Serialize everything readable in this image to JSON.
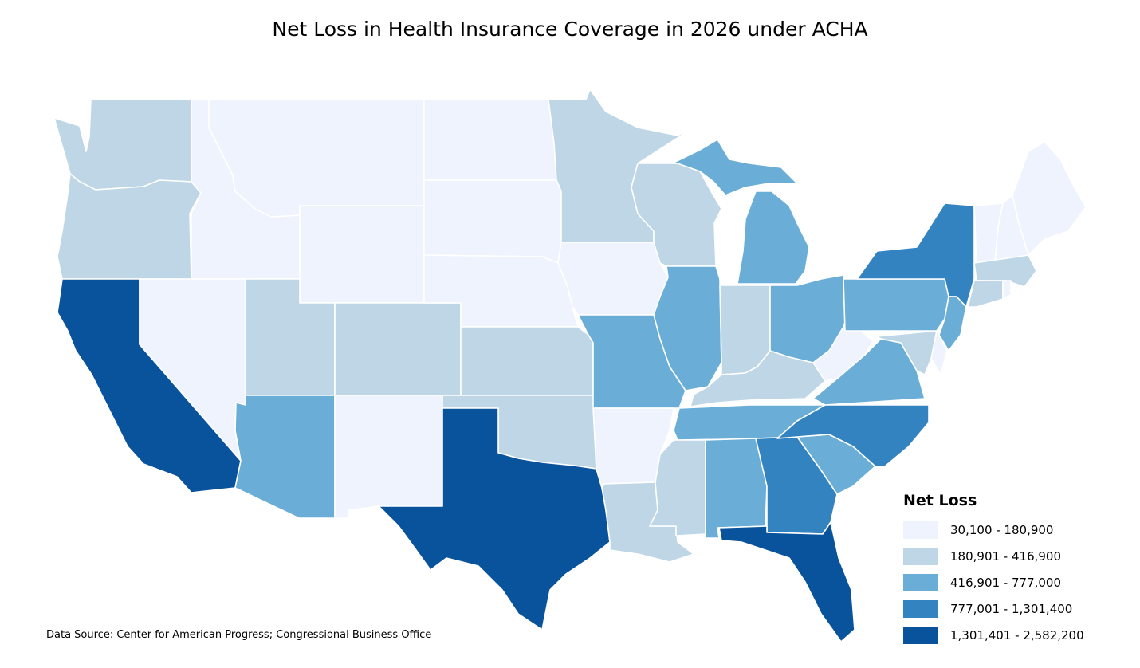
{
  "title": "Net Loss in Health Insurance Coverage in 2026 under ACHA",
  "source": "Data Source: Center for American Progress; Congressional Business Office",
  "legend": {
    "title": "Net Loss",
    "classes": [
      {
        "label": "30,100 - 180,900",
        "color": "#eef3fd"
      },
      {
        "label": "180,901 - 416,900",
        "color": "#bed6e6"
      },
      {
        "label": "416,901 - 777,000",
        "color": "#6aaed8"
      },
      {
        "label": "777,001 - 1,301,400",
        "color": "#3383c0"
      },
      {
        "label": "1,301,401 - 2,582,200",
        "color": "#09529c"
      }
    ]
  },
  "states": [
    {
      "id": "WA",
      "class": 1
    },
    {
      "id": "OR",
      "class": 1
    },
    {
      "id": "CA",
      "class": 4
    },
    {
      "id": "ID",
      "class": 0
    },
    {
      "id": "NV",
      "class": 0
    },
    {
      "id": "MT",
      "class": 0
    },
    {
      "id": "WY",
      "class": 0
    },
    {
      "id": "UT",
      "class": 1
    },
    {
      "id": "AZ",
      "class": 2
    },
    {
      "id": "CO",
      "class": 1
    },
    {
      "id": "NM",
      "class": 0
    },
    {
      "id": "ND",
      "class": 0
    },
    {
      "id": "SD",
      "class": 0
    },
    {
      "id": "NE",
      "class": 0
    },
    {
      "id": "KS",
      "class": 1
    },
    {
      "id": "OK",
      "class": 1
    },
    {
      "id": "TX",
      "class": 4
    },
    {
      "id": "MN",
      "class": 1
    },
    {
      "id": "IA",
      "class": 0
    },
    {
      "id": "MO",
      "class": 2
    },
    {
      "id": "AR",
      "class": 0
    },
    {
      "id": "LA",
      "class": 1
    },
    {
      "id": "WI",
      "class": 1
    },
    {
      "id": "IL",
      "class": 2
    },
    {
      "id": "MI",
      "class": 2
    },
    {
      "id": "IN",
      "class": 1
    },
    {
      "id": "OH",
      "class": 2
    },
    {
      "id": "KY",
      "class": 1
    },
    {
      "id": "TN",
      "class": 2
    },
    {
      "id": "MS",
      "class": 1
    },
    {
      "id": "AL",
      "class": 2
    },
    {
      "id": "GA",
      "class": 3
    },
    {
      "id": "FL",
      "class": 4
    },
    {
      "id": "SC",
      "class": 2
    },
    {
      "id": "NC",
      "class": 3
    },
    {
      "id": "VA",
      "class": 2
    },
    {
      "id": "WV",
      "class": 0
    },
    {
      "id": "PA",
      "class": 2
    },
    {
      "id": "NY",
      "class": 3
    },
    {
      "id": "NJ",
      "class": 2
    },
    {
      "id": "DE",
      "class": 0
    },
    {
      "id": "MD",
      "class": 1
    },
    {
      "id": "VT",
      "class": 0
    },
    {
      "id": "NH",
      "class": 0
    },
    {
      "id": "ME",
      "class": 0
    },
    {
      "id": "MA",
      "class": 1
    },
    {
      "id": "CT",
      "class": 1
    },
    {
      "id": "RI",
      "class": 0
    }
  ]
}
